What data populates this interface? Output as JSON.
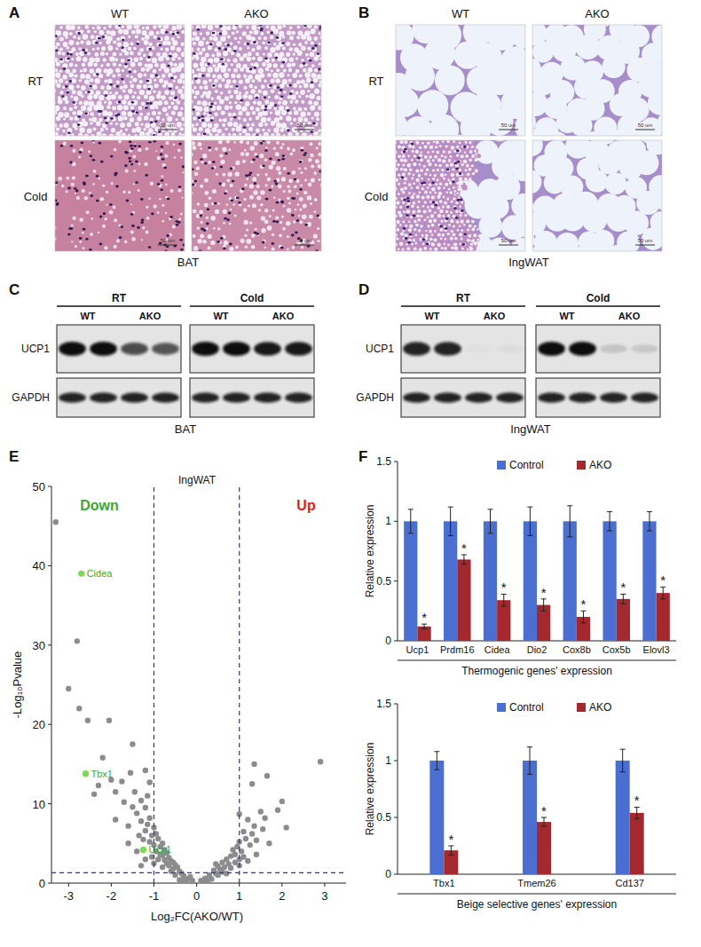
{
  "panels": {
    "A": {
      "label": "A",
      "columns": [
        "WT",
        "AKO"
      ],
      "rows": [
        "RT",
        "Cold"
      ],
      "caption": "BAT",
      "scale_bar": "50 um"
    },
    "B": {
      "label": "B",
      "columns": [
        "WT",
        "AKO"
      ],
      "rows": [
        "RT",
        "Cold"
      ],
      "caption": "IngWAT",
      "scale_bar": "50 um"
    },
    "C": {
      "label": "C",
      "conditions": [
        "RT",
        "Cold"
      ],
      "genotypes": [
        "WT",
        "AKO"
      ],
      "proteins": [
        "UCP1",
        "GAPDH"
      ],
      "caption": "BAT"
    },
    "D": {
      "label": "D",
      "conditions": [
        "RT",
        "Cold"
      ],
      "genotypes": [
        "WT",
        "AKO"
      ],
      "proteins": [
        "UCP1",
        "GAPDH"
      ],
      "caption": "IngWAT"
    },
    "E": {
      "label": "E"
    },
    "F": {
      "label": "F"
    }
  },
  "chart_data": [
    {
      "type": "scatter",
      "title": "IngWAT",
      "x_label": "Log₂FC(AKO/WT)",
      "y_label": "-Log₁₀Pvalue",
      "color": "#8c8c8c",
      "x": [
        -0.1,
        -0.2,
        -0.3,
        -0.35,
        -0.4,
        -0.45,
        -0.5,
        -0.55,
        -0.6,
        -0.65,
        -0.7,
        -0.7,
        -0.75,
        -0.8,
        -0.8,
        -0.85,
        -0.9,
        -0.9,
        -0.95,
        -1.0,
        -1.0,
        -1.05,
        -1.1,
        -1.1,
        -1.15,
        -1.2,
        -1.2,
        -1.3,
        -1.3,
        -1.35,
        -1.4,
        -1.45,
        -1.5,
        -1.6,
        -1.7,
        -1.9,
        -0.25,
        -0.15,
        -0.5,
        -0.6,
        -0.8,
        -1.0,
        -1.2,
        -1.4,
        -0.4,
        -0.3,
        -0.55,
        -0.65,
        -0.75,
        -0.85,
        -0.95,
        -1.05,
        -1.25,
        -1.6,
        -1.3,
        -1.15,
        -1.2,
        -1.1,
        0.1,
        0.2,
        0.3,
        0.35,
        0.4,
        0.45,
        0.5,
        0.55,
        0.6,
        0.65,
        0.7,
        0.75,
        0.8,
        0.85,
        0.9,
        0.95,
        1.0,
        1.0,
        1.05,
        1.1,
        1.15,
        1.2,
        1.25,
        1.3,
        1.35,
        1.4,
        1.5,
        1.55,
        1.6,
        1.9,
        2.0,
        1.3,
        1.35,
        1.65,
        2.9,
        1.0,
        0.15,
        0.25,
        0.5,
        0.6,
        0.8,
        1.0,
        1.2,
        1.4,
        0.45,
        0.7,
        0.9,
        1.7,
        2.1,
        1.1,
        -3.3,
        -2.8,
        -3.0,
        -2.75,
        -2.55,
        -2.05,
        -1.5,
        -2.2,
        -1.75,
        -2.3,
        -2.0,
        -1.9,
        -2.4,
        -1.55
      ],
      "values": [
        0.3,
        0.5,
        0.9,
        1.2,
        1.5,
        2.0,
        2.3,
        1.8,
        2.8,
        3.2,
        2.5,
        3.8,
        4.2,
        3.5,
        5.0,
        4.6,
        5.6,
        3.0,
        6.2,
        4.8,
        7.0,
        6.0,
        8.2,
        5.2,
        7.4,
        9.5,
        6.6,
        10.4,
        7.8,
        6.0,
        8.8,
        11.5,
        9.6,
        7.2,
        10.2,
        8.0,
        0.2,
        0.8,
        1.0,
        1.5,
        2.0,
        2.5,
        3.0,
        4.0,
        0.4,
        0.3,
        2.6,
        2.2,
        2.9,
        3.6,
        4.0,
        3.3,
        5.5,
        5.0,
        2.2,
        11.0,
        14.2,
        12.7,
        0.3,
        0.6,
        1.0,
        0.5,
        1.6,
        1.2,
        2.1,
        1.7,
        2.6,
        2.0,
        3.0,
        2.4,
        3.4,
        4.2,
        3.6,
        4.6,
        5.2,
        3.0,
        4.0,
        6.5,
        5.6,
        8.0,
        4.8,
        6.2,
        7.2,
        5.4,
        9.0,
        6.8,
        8.2,
        9.2,
        10.3,
        12.5,
        15.0,
        13.5,
        15.3,
        8.7,
        0.1,
        0.3,
        1.0,
        1.4,
        1.9,
        2.2,
        2.8,
        3.6,
        2.4,
        1.2,
        2.6,
        5.0,
        7.0,
        3.3,
        45.5,
        30.5,
        24.5,
        22.0,
        20.5,
        20.5,
        17.5,
        15.8,
        12.8,
        12.3,
        13.0,
        11.5,
        11.2,
        13.9
      ],
      "highlights": [
        {
          "label": "Cidea",
          "x": -2.7,
          "value": 39
        },
        {
          "label": "Tbx1",
          "x": -2.6,
          "value": 13.8
        },
        {
          "label": "Ucp1",
          "x": -1.25,
          "value": 4.2
        }
      ],
      "highlight_color": "#7ed957",
      "thresholds": {
        "x": [
          -1,
          1
        ],
        "y": 1.3
      },
      "annotations": [
        {
          "text": "Down",
          "color": "#3aa935"
        },
        {
          "text": "Up",
          "color": "#e0201b"
        }
      ],
      "xlim": [
        -3.4,
        3.5
      ],
      "xticks": [
        -3,
        -2,
        -1,
        0,
        1,
        2,
        3
      ],
      "ylim": [
        0,
        50
      ],
      "yticks": [
        0,
        10,
        20,
        30,
        40,
        50
      ],
      "grid": false
    },
    {
      "type": "bar",
      "categories": [
        "Ucp1",
        "Prdm16",
        "Cidea",
        "Dio2",
        "Cox8b",
        "Cox5b",
        "Elovl3"
      ],
      "series": [
        {
          "name": "Control",
          "color": "#4a6fd1",
          "values": [
            1,
            1,
            1,
            1,
            1,
            1,
            1
          ],
          "errors": [
            0.1,
            0.12,
            0.1,
            0.12,
            0.13,
            0.08,
            0.08
          ]
        },
        {
          "name": "AKO",
          "color": "#a3292e",
          "values": [
            0.12,
            0.68,
            0.34,
            0.3,
            0.2,
            0.35,
            0.4
          ],
          "errors": [
            0.02,
            0.04,
            0.05,
            0.05,
            0.05,
            0.04,
            0.05
          ],
          "significance": [
            "*",
            "*",
            "*",
            "*",
            "*",
            "*",
            "*"
          ]
        }
      ],
      "y_label": "Relative expression",
      "x_label": "Thermogenic genes' expression",
      "ylim": [
        0,
        1.5
      ],
      "yticks": [
        0,
        0.5,
        1,
        1.5
      ],
      "legend": "top",
      "grid": false
    },
    {
      "type": "bar",
      "categories": [
        "Tbx1",
        "Tmem26",
        "Cd137"
      ],
      "series": [
        {
          "name": "Control",
          "color": "#4a6fd1",
          "values": [
            1,
            1,
            1
          ],
          "errors": [
            0.08,
            0.12,
            0.1
          ]
        },
        {
          "name": "AKO",
          "color": "#a3292e",
          "values": [
            0.21,
            0.46,
            0.54
          ],
          "errors": [
            0.04,
            0.04,
            0.05
          ],
          "significance": [
            "*",
            "*",
            "*"
          ]
        }
      ],
      "y_label": "Relative expression",
      "x_label": "Beige selective genes' expression",
      "ylim": [
        0,
        1.5
      ],
      "yticks": [
        0,
        0.5,
        1,
        1.5
      ],
      "legend": "top",
      "grid": false
    }
  ]
}
